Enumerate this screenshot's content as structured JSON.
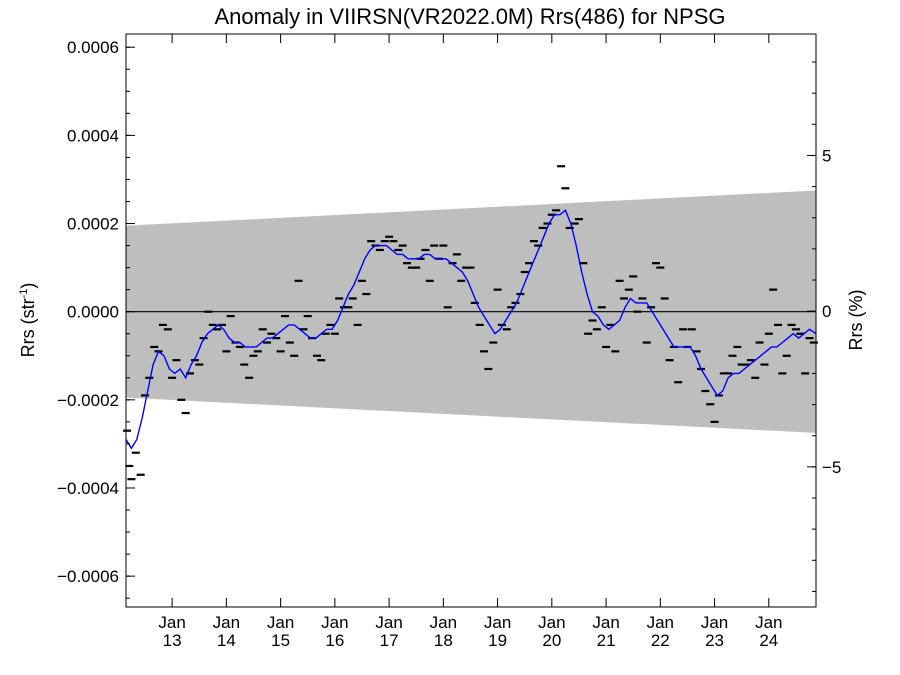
{
  "chart_data": {
    "type": "scatter",
    "title": "Anomaly in VIIRSN(VR2022.0M) Rrs(486) for NPSG",
    "ylabel": {
      "main": "Rrs (str",
      "sup": "-1",
      "close": ")"
    },
    "y2label": "Rrs (%)",
    "ylim": [
      -0.00067,
      0.00063
    ],
    "y2lim": [
      -9.5,
      8.9
    ],
    "xlim": [
      2012.15,
      2024.87
    ],
    "yticks": [
      {
        "v": -0.0006,
        "label": "−0.0006"
      },
      {
        "v": -0.0004,
        "label": "−0.0004"
      },
      {
        "v": -0.0002,
        "label": "−0.0002"
      },
      {
        "v": 0.0,
        "label": "0.0000"
      },
      {
        "v": 0.0002,
        "label": "0.0002"
      },
      {
        "v": 0.0004,
        "label": "0.0004"
      },
      {
        "v": 0.0006,
        "label": "0.0006"
      }
    ],
    "y2ticks": [
      {
        "v": -5,
        "label": "−5"
      },
      {
        "v": 0,
        "label": "0"
      },
      {
        "v": 5,
        "label": "5"
      }
    ],
    "xticks": [
      {
        "v": 2013,
        "line1": "Jan",
        "line2": "13"
      },
      {
        "v": 2014,
        "line1": "Jan",
        "line2": "14"
      },
      {
        "v": 2015,
        "line1": "Jan",
        "line2": "15"
      },
      {
        "v": 2016,
        "line1": "Jan",
        "line2": "16"
      },
      {
        "v": 2017,
        "line1": "Jan",
        "line2": "17"
      },
      {
        "v": 2018,
        "line1": "Jan",
        "line2": "18"
      },
      {
        "v": 2019,
        "line1": "Jan",
        "line2": "19"
      },
      {
        "v": 2020,
        "line1": "Jan",
        "line2": "20"
      },
      {
        "v": 2021,
        "line1": "Jan",
        "line2": "21"
      },
      {
        "v": 2022,
        "line1": "Jan",
        "line2": "22"
      },
      {
        "v": 2023,
        "line1": "Jan",
        "line2": "23"
      },
      {
        "v": 2024,
        "line1": "Jan",
        "line2": "24"
      }
    ],
    "band": {
      "upper_start": 0.000195,
      "upper_end": 0.000275,
      "lower_start": -0.000195,
      "lower_end": -0.000275
    },
    "zero_line": 0.0,
    "colors": {
      "band": "#bebebe",
      "smooth_line": "#0000ff",
      "points": "#000000",
      "zero_line": "#000000"
    },
    "points": [
      [
        2012.17,
        -0.00027
      ],
      [
        2012.21,
        -0.00035
      ],
      [
        2012.25,
        -0.00038
      ],
      [
        2012.33,
        -0.00032
      ],
      [
        2012.42,
        -0.00037
      ],
      [
        2012.5,
        -0.00019
      ],
      [
        2012.58,
        -0.00015
      ],
      [
        2012.67,
        -8e-05
      ],
      [
        2012.75,
        -9e-05
      ],
      [
        2012.83,
        -3e-05
      ],
      [
        2012.92,
        -4e-05
      ],
      [
        2013.0,
        -0.00015
      ],
      [
        2013.08,
        -0.00011
      ],
      [
        2013.17,
        -0.0002
      ],
      [
        2013.25,
        -0.00023
      ],
      [
        2013.33,
        -0.00014
      ],
      [
        2013.42,
        -0.00011
      ],
      [
        2013.5,
        -0.00012
      ],
      [
        2013.58,
        -6e-05
      ],
      [
        2013.67,
        0.0
      ],
      [
        2013.75,
        -3e-05
      ],
      [
        2013.83,
        -4e-05
      ],
      [
        2013.92,
        -3e-05
      ],
      [
        2014.0,
        -9e-05
      ],
      [
        2014.08,
        -1e-05
      ],
      [
        2014.17,
        -7e-05
      ],
      [
        2014.25,
        -8e-05
      ],
      [
        2014.33,
        -0.00012
      ],
      [
        2014.42,
        -0.00015
      ],
      [
        2014.5,
        -0.0001
      ],
      [
        2014.58,
        -9e-05
      ],
      [
        2014.67,
        -4e-05
      ],
      [
        2014.75,
        -7e-05
      ],
      [
        2014.83,
        -5e-05
      ],
      [
        2014.92,
        -6e-05
      ],
      [
        2015.0,
        -9e-05
      ],
      [
        2015.08,
        -1e-05
      ],
      [
        2015.17,
        -7e-05
      ],
      [
        2015.25,
        -0.0001
      ],
      [
        2015.33,
        7e-05
      ],
      [
        2015.42,
        -4e-05
      ],
      [
        2015.5,
        -1e-05
      ],
      [
        2015.58,
        -6e-05
      ],
      [
        2015.67,
        -0.0001
      ],
      [
        2015.75,
        -0.00011
      ],
      [
        2015.83,
        -5e-05
      ],
      [
        2015.92,
        -3e-05
      ],
      [
        2016.0,
        -5e-05
      ],
      [
        2016.08,
        3e-05
      ],
      [
        2016.17,
        1e-05
      ],
      [
        2016.25,
        1e-05
      ],
      [
        2016.33,
        3e-05
      ],
      [
        2016.42,
        -3e-05
      ],
      [
        2016.5,
        7e-05
      ],
      [
        2016.58,
        4e-05
      ],
      [
        2016.67,
        0.00016
      ],
      [
        2016.75,
        0.00015
      ],
      [
        2016.83,
        0.00014
      ],
      [
        2016.92,
        0.00016
      ],
      [
        2017.0,
        0.00017
      ],
      [
        2017.08,
        0.00016
      ],
      [
        2017.17,
        0.00014
      ],
      [
        2017.25,
        0.00015
      ],
      [
        2017.33,
        0.00011
      ],
      [
        2017.42,
        0.0001
      ],
      [
        2017.5,
        0.0001
      ],
      [
        2017.58,
        0.00012
      ],
      [
        2017.67,
        0.00014
      ],
      [
        2017.75,
        7e-05
      ],
      [
        2017.83,
        0.00015
      ],
      [
        2017.92,
        0.00012
      ],
      [
        2018.0,
        0.00015
      ],
      [
        2018.08,
        1e-05
      ],
      [
        2018.17,
        0.00011
      ],
      [
        2018.25,
        0.00013
      ],
      [
        2018.33,
        7e-05
      ],
      [
        2018.42,
        0.0001
      ],
      [
        2018.5,
        0.0001
      ],
      [
        2018.58,
        2e-05
      ],
      [
        2018.67,
        -3e-05
      ],
      [
        2018.75,
        -9e-05
      ],
      [
        2018.83,
        -0.00013
      ],
      [
        2018.92,
        -7e-05
      ],
      [
        2019.0,
        5e-05
      ],
      [
        2019.08,
        -3e-05
      ],
      [
        2019.17,
        -4e-05
      ],
      [
        2019.25,
        1e-05
      ],
      [
        2019.33,
        2e-05
      ],
      [
        2019.42,
        4e-05
      ],
      [
        2019.5,
        9e-05
      ],
      [
        2019.58,
        0.00011
      ],
      [
        2019.67,
        0.00016
      ],
      [
        2019.75,
        0.00015
      ],
      [
        2019.83,
        0.00019
      ],
      [
        2019.92,
        0.0002
      ],
      [
        2020.0,
        0.00022
      ],
      [
        2020.08,
        0.00023
      ],
      [
        2020.17,
        0.00033
      ],
      [
        2020.25,
        0.00028
      ],
      [
        2020.33,
        0.00019
      ],
      [
        2020.42,
        0.0002
      ],
      [
        2020.5,
        0.00021
      ],
      [
        2020.58,
        0.00011
      ],
      [
        2020.67,
        -5e-05
      ],
      [
        2020.75,
        -2e-05
      ],
      [
        2020.83,
        -4e-05
      ],
      [
        2020.92,
        1e-05
      ],
      [
        2021.0,
        -8e-05
      ],
      [
        2021.08,
        -3e-05
      ],
      [
        2021.17,
        -9e-05
      ],
      [
        2021.25,
        7e-05
      ],
      [
        2021.33,
        3e-05
      ],
      [
        2021.42,
        5e-05
      ],
      [
        2021.5,
        8e-05
      ],
      [
        2021.58,
        0.0
      ],
      [
        2021.67,
        3e-05
      ],
      [
        2021.75,
        -7e-05
      ],
      [
        2021.83,
        1e-05
      ],
      [
        2021.92,
        0.00011
      ],
      [
        2022.0,
        0.0001
      ],
      [
        2022.08,
        3e-05
      ],
      [
        2022.17,
        -0.00011
      ],
      [
        2022.25,
        -8e-05
      ],
      [
        2022.33,
        -0.00016
      ],
      [
        2022.42,
        -4e-05
      ],
      [
        2022.5,
        -8e-05
      ],
      [
        2022.58,
        -4e-05
      ],
      [
        2022.67,
        -9e-05
      ],
      [
        2022.75,
        -0.00013
      ],
      [
        2022.83,
        -0.00018
      ],
      [
        2022.92,
        -0.00021
      ],
      [
        2023.0,
        -0.00025
      ],
      [
        2023.08,
        -0.00019
      ],
      [
        2023.17,
        -0.00014
      ],
      [
        2023.25,
        -0.00014
      ],
      [
        2023.33,
        -0.0001
      ],
      [
        2023.42,
        -8e-05
      ],
      [
        2023.5,
        -0.00012
      ],
      [
        2023.58,
        -0.00012
      ],
      [
        2023.67,
        -0.00011
      ],
      [
        2023.75,
        -0.00015
      ],
      [
        2023.83,
        -7e-05
      ],
      [
        2023.92,
        -0.00012
      ],
      [
        2024.0,
        -5e-05
      ],
      [
        2024.08,
        5e-05
      ],
      [
        2024.17,
        -3e-05
      ],
      [
        2024.25,
        -0.00014
      ],
      [
        2024.33,
        -0.0001
      ],
      [
        2024.42,
        -3e-05
      ],
      [
        2024.5,
        -4e-05
      ],
      [
        2024.58,
        -5e-05
      ],
      [
        2024.67,
        -0.00014
      ],
      [
        2024.75,
        -6e-05
      ],
      [
        2024.83,
        -7e-05
      ]
    ],
    "smooth": [
      [
        2012.15,
        -0.00029
      ],
      [
        2012.25,
        -0.00031
      ],
      [
        2012.35,
        -0.00029
      ],
      [
        2012.45,
        -0.00024
      ],
      [
        2012.55,
        -0.00018
      ],
      [
        2012.65,
        -0.00012
      ],
      [
        2012.75,
        -9e-05
      ],
      [
        2012.85,
        -0.0001
      ],
      [
        2012.95,
        -0.00013
      ],
      [
        2013.05,
        -0.00014
      ],
      [
        2013.15,
        -0.00013
      ],
      [
        2013.25,
        -0.00015
      ],
      [
        2013.35,
        -0.00012
      ],
      [
        2013.45,
        -0.0001
      ],
      [
        2013.55,
        -7e-05
      ],
      [
        2013.65,
        -5e-05
      ],
      [
        2013.75,
        -4e-05
      ],
      [
        2013.85,
        -3e-05
      ],
      [
        2013.95,
        -4e-05
      ],
      [
        2014.05,
        -6e-05
      ],
      [
        2014.15,
        -7e-05
      ],
      [
        2014.25,
        -7e-05
      ],
      [
        2014.35,
        -8e-05
      ],
      [
        2014.45,
        -8e-05
      ],
      [
        2014.55,
        -8e-05
      ],
      [
        2014.65,
        -7e-05
      ],
      [
        2014.75,
        -6e-05
      ],
      [
        2014.85,
        -6e-05
      ],
      [
        2014.95,
        -5e-05
      ],
      [
        2015.05,
        -4e-05
      ],
      [
        2015.15,
        -3e-05
      ],
      [
        2015.25,
        -3e-05
      ],
      [
        2015.35,
        -4e-05
      ],
      [
        2015.45,
        -5e-05
      ],
      [
        2015.55,
        -6e-05
      ],
      [
        2015.65,
        -6e-05
      ],
      [
        2015.75,
        -5e-05
      ],
      [
        2015.85,
        -4e-05
      ],
      [
        2015.95,
        -4e-05
      ],
      [
        2016.05,
        -2e-05
      ],
      [
        2016.15,
        1e-05
      ],
      [
        2016.25,
        4e-05
      ],
      [
        2016.35,
        6e-05
      ],
      [
        2016.45,
        9e-05
      ],
      [
        2016.55,
        0.00012
      ],
      [
        2016.65,
        0.00014
      ],
      [
        2016.75,
        0.00015
      ],
      [
        2016.85,
        0.00015
      ],
      [
        2016.95,
        0.00015
      ],
      [
        2017.05,
        0.00014
      ],
      [
        2017.15,
        0.00013
      ],
      [
        2017.25,
        0.00013
      ],
      [
        2017.35,
        0.00012
      ],
      [
        2017.45,
        0.00012
      ],
      [
        2017.55,
        0.00012
      ],
      [
        2017.65,
        0.00013
      ],
      [
        2017.75,
        0.00013
      ],
      [
        2017.85,
        0.00012
      ],
      [
        2017.95,
        0.00012
      ],
      [
        2018.05,
        0.00012
      ],
      [
        2018.15,
        0.00011
      ],
      [
        2018.25,
        0.0001
      ],
      [
        2018.35,
        9e-05
      ],
      [
        2018.45,
        7e-05
      ],
      [
        2018.55,
        4e-05
      ],
      [
        2018.65,
        1e-05
      ],
      [
        2018.75,
        -1e-05
      ],
      [
        2018.85,
        -3e-05
      ],
      [
        2018.95,
        -5e-05
      ],
      [
        2019.05,
        -4e-05
      ],
      [
        2019.15,
        -2e-05
      ],
      [
        2019.25,
        0.0
      ],
      [
        2019.35,
        2e-05
      ],
      [
        2019.45,
        5e-05
      ],
      [
        2019.55,
        8e-05
      ],
      [
        2019.65,
        0.00011
      ],
      [
        2019.75,
        0.00014
      ],
      [
        2019.85,
        0.00017
      ],
      [
        2019.95,
        0.0002
      ],
      [
        2020.05,
        0.00022
      ],
      [
        2020.15,
        0.00022
      ],
      [
        2020.25,
        0.00023
      ],
      [
        2020.35,
        0.0002
      ],
      [
        2020.45,
        0.00015
      ],
      [
        2020.55,
        9e-05
      ],
      [
        2020.65,
        4e-05
      ],
      [
        2020.75,
        0.0
      ],
      [
        2020.85,
        -1e-05
      ],
      [
        2020.95,
        -3e-05
      ],
      [
        2021.05,
        -4e-05
      ],
      [
        2021.15,
        -3e-05
      ],
      [
        2021.25,
        -2e-05
      ],
      [
        2021.35,
        1e-05
      ],
      [
        2021.45,
        3e-05
      ],
      [
        2021.55,
        2e-05
      ],
      [
        2021.65,
        2e-05
      ],
      [
        2021.75,
        2e-05
      ],
      [
        2021.85,
        0.0
      ],
      [
        2021.95,
        -2e-05
      ],
      [
        2022.05,
        -4e-05
      ],
      [
        2022.15,
        -6e-05
      ],
      [
        2022.25,
        -8e-05
      ],
      [
        2022.35,
        -8e-05
      ],
      [
        2022.45,
        -8e-05
      ],
      [
        2022.55,
        -8e-05
      ],
      [
        2022.65,
        -0.0001
      ],
      [
        2022.75,
        -0.00013
      ],
      [
        2022.85,
        -0.00015
      ],
      [
        2022.95,
        -0.00017
      ],
      [
        2023.05,
        -0.00019
      ],
      [
        2023.15,
        -0.00018
      ],
      [
        2023.25,
        -0.00015
      ],
      [
        2023.35,
        -0.00014
      ],
      [
        2023.45,
        -0.00014
      ],
      [
        2023.55,
        -0.00013
      ],
      [
        2023.65,
        -0.00012
      ],
      [
        2023.75,
        -0.00011
      ],
      [
        2023.85,
        -0.0001
      ],
      [
        2023.95,
        -9e-05
      ],
      [
        2024.05,
        -8e-05
      ],
      [
        2024.15,
        -8e-05
      ],
      [
        2024.25,
        -7e-05
      ],
      [
        2024.35,
        -6e-05
      ],
      [
        2024.45,
        -5e-05
      ],
      [
        2024.55,
        -6e-05
      ],
      [
        2024.65,
        -5e-05
      ],
      [
        2024.75,
        -4e-05
      ],
      [
        2024.87,
        -5e-05
      ]
    ]
  }
}
